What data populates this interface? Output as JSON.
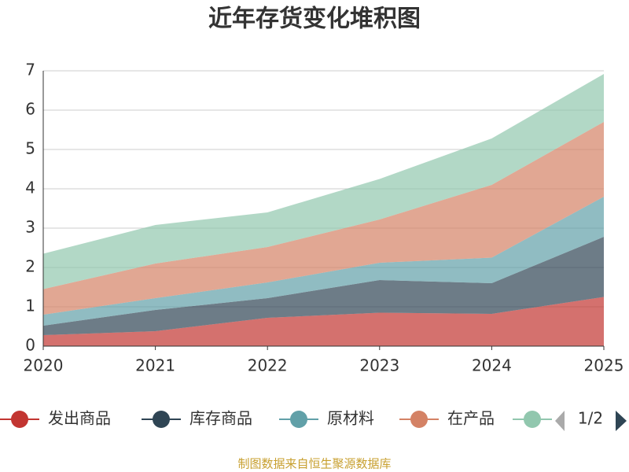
{
  "chart_data": {
    "type": "stacked_area",
    "title": "近年存货变化堆积图",
    "categories": [
      "2020",
      "2021",
      "2022",
      "2023",
      "2024",
      "2025"
    ],
    "series": [
      {
        "name": "发出商品",
        "color": "#c23531",
        "values": [
          0.28,
          0.38,
          0.72,
          0.85,
          0.82,
          1.25
        ]
      },
      {
        "name": "库存商品",
        "color": "#2f4554",
        "values": [
          0.24,
          0.54,
          0.5,
          0.83,
          0.78,
          1.53
        ]
      },
      {
        "name": "原材料",
        "color": "#61a0a8",
        "values": [
          0.28,
          0.3,
          0.4,
          0.44,
          0.65,
          1.02
        ]
      },
      {
        "name": "在产品",
        "color": "#d48265",
        "values": [
          0.65,
          0.88,
          0.9,
          1.1,
          1.85,
          1.9
        ]
      },
      {
        "color": "#91c7ae",
        "values": [
          0.9,
          0.98,
          0.88,
          1.03,
          1.18,
          1.22
        ]
      }
    ],
    "ylim": [
      0,
      7
    ],
    "yticks": [
      0,
      1,
      2,
      3,
      4,
      5,
      6,
      7
    ],
    "grid": true,
    "legend_page": "1/2",
    "source": "制图数据来自恒生聚源数据库"
  }
}
